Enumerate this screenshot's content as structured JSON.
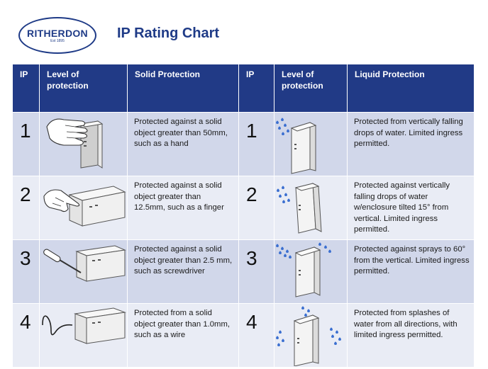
{
  "logo": {
    "name": "RITHERDON",
    "est": "Est 1895"
  },
  "title": "IP Rating Chart",
  "table": {
    "headers": {
      "ip": "IP",
      "level": "Level of protection",
      "solid": "Solid Protection",
      "ip2": "IP",
      "level2": "Level of protection",
      "liquid": "Liquid Protection"
    },
    "rows": [
      {
        "solid_ip": "1",
        "solid_icon": "hand-icon",
        "solid_desc": "Protected against a solid object greater than 50mm, such as a hand",
        "liquid_ip": "1",
        "liquid_icon": "vertical-drops-icon",
        "liquid_desc": "Protected from vertically falling drops of water. Limited ingress permitted."
      },
      {
        "solid_ip": "2",
        "solid_icon": "finger-icon",
        "solid_desc": "Protected against a solid object greater than 12.5mm, such as a finger",
        "liquid_ip": "2",
        "liquid_icon": "tilted-drops-icon",
        "liquid_desc": "Protected against vertically falling drops of water w/enclosure tilted 15° from vertical. Limited ingress permitted."
      },
      {
        "solid_ip": "3",
        "solid_icon": "screwdriver-icon",
        "solid_desc": "Protected against a solid object greater than 2.5 mm, such as screwdriver",
        "liquid_ip": "3",
        "liquid_icon": "spray-icon",
        "liquid_desc": "Protected against sprays to 60° from the vertical. Limited ingress permitted."
      },
      {
        "solid_ip": "4",
        "solid_icon": "wire-icon",
        "solid_desc": "Protected from a solid object greater than 1.0mm, such as a wire",
        "liquid_ip": "4",
        "liquid_icon": "splash-icon",
        "liquid_desc": "Protected from splashes of water from all directions, with limited ingress permitted."
      }
    ]
  },
  "colors": {
    "brand": "#1f3b87",
    "header_bg": "#213a86",
    "row_dark": "#d1d7ea",
    "row_light": "#e9ecf5",
    "water": "#3b6fd0"
  }
}
